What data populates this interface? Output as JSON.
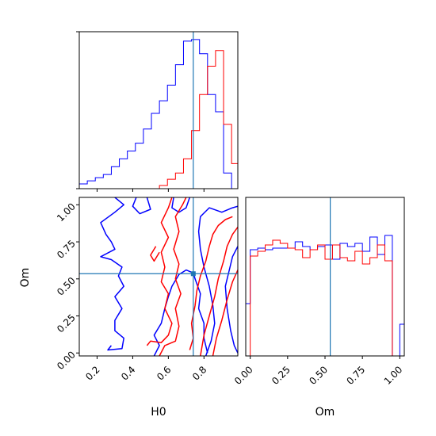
{
  "chart_data": {
    "type": "corner",
    "parameters": [
      "H0",
      "Om"
    ],
    "truths": {
      "H0": 0.74,
      "Om": 0.535
    },
    "colors": {
      "blue": "#0000ff",
      "red": "#ff0000",
      "truth": "#1f77b4"
    },
    "panels": [
      {
        "id": "hist-h0",
        "type": "histogram-step",
        "x_range": [
          0.1,
          0.99
        ],
        "bin_edges": [
          0.1,
          0.145,
          0.19,
          0.235,
          0.28,
          0.325,
          0.37,
          0.415,
          0.46,
          0.505,
          0.55,
          0.595,
          0.64,
          0.685,
          0.73,
          0.775,
          0.82,
          0.865,
          0.91,
          0.955,
          0.99
        ],
        "series": [
          {
            "color": "#0000ff",
            "counts": [
              0.03,
              0.05,
              0.07,
              0.09,
              0.14,
              0.19,
              0.24,
              0.29,
              0.38,
              0.48,
              0.56,
              0.66,
              0.79,
              0.94,
              0.95,
              0.86,
              0.6,
              0.49,
              0.1,
              0.0
            ]
          },
          {
            "color": "#ff0000",
            "counts": [
              0.0,
              0.0,
              0.0,
              0.0,
              0.0,
              0.0,
              0.0,
              0.0,
              0.0,
              0.0,
              0.02,
              0.06,
              0.1,
              0.19,
              0.37,
              0.6,
              0.78,
              0.88,
              0.41,
              0.16
            ]
          }
        ],
        "x_ticks": [
          0.2,
          0.4,
          0.6,
          0.8
        ]
      },
      {
        "id": "contour-h0-om",
        "type": "contour",
        "x_range": [
          0.1,
          0.99
        ],
        "y_range": [
          -0.02,
          1.05
        ],
        "x_ticks": [
          "0.2",
          "0.4",
          "0.6",
          "0.8"
        ],
        "y_ticks": [
          "0.00",
          "0.25",
          "0.50",
          "0.75",
          "1.00"
        ],
        "xlabel": "H0",
        "ylabel": "Om",
        "contours": [
          {
            "color": "#0000ff",
            "points": [
              [
                0.28,
                0.05
              ],
              [
                0.26,
                0.02
              ],
              [
                0.34,
                0.03
              ],
              [
                0.35,
                0.1
              ],
              [
                0.3,
                0.15
              ],
              [
                0.3,
                0.22
              ],
              [
                0.34,
                0.3
              ],
              [
                0.3,
                0.38
              ],
              [
                0.35,
                0.45
              ],
              [
                0.32,
                0.52
              ],
              [
                0.34,
                0.58
              ],
              [
                0.28,
                0.63
              ],
              [
                0.22,
                0.65
              ],
              [
                0.3,
                0.7
              ],
              [
                0.28,
                0.75
              ],
              [
                0.25,
                0.8
              ],
              [
                0.22,
                0.88
              ],
              [
                0.3,
                0.95
              ],
              [
                0.35,
                1.0
              ],
              [
                0.3,
                1.05
              ]
            ]
          },
          {
            "color": "#0000ff",
            "points": [
              [
                0.42,
                1.05
              ],
              [
                0.4,
                0.99
              ],
              [
                0.44,
                0.94
              ],
              [
                0.5,
                0.97
              ],
              [
                0.48,
                1.05
              ]
            ]
          },
          {
            "color": "#0000ff",
            "points": [
              [
                0.63,
                1.05
              ],
              [
                0.62,
                0.98
              ],
              [
                0.66,
                0.95
              ],
              [
                0.7,
                0.98
              ],
              [
                0.72,
                1.05
              ]
            ]
          },
          {
            "color": "#0000ff",
            "points": [
              [
                0.52,
                -0.02
              ],
              [
                0.55,
                0.05
              ],
              [
                0.52,
                0.12
              ],
              [
                0.56,
                0.2
              ],
              [
                0.58,
                0.3
              ],
              [
                0.6,
                0.38
              ],
              [
                0.62,
                0.45
              ],
              [
                0.66,
                0.53
              ],
              [
                0.7,
                0.56
              ],
              [
                0.74,
                0.54
              ],
              [
                0.75,
                0.5
              ],
              [
                0.78,
                0.4
              ],
              [
                0.77,
                0.3
              ],
              [
                0.8,
                0.2
              ],
              [
                0.8,
                0.1
              ],
              [
                0.82,
                0.0
              ]
            ]
          },
          {
            "color": "#0000ff",
            "points": [
              [
                0.81,
                -0.02
              ],
              [
                0.84,
                0.08
              ],
              [
                0.86,
                0.2
              ],
              [
                0.85,
                0.32
              ],
              [
                0.83,
                0.45
              ],
              [
                0.8,
                0.58
              ],
              [
                0.78,
                0.7
              ],
              [
                0.77,
                0.82
              ],
              [
                0.78,
                0.92
              ],
              [
                0.83,
                0.98
              ],
              [
                0.9,
                0.95
              ],
              [
                0.96,
                0.98
              ],
              [
                0.99,
                0.99
              ]
            ]
          },
          {
            "color": "#0000ff",
            "points": [
              [
                0.99,
                0.72
              ],
              [
                0.96,
                0.65
              ],
              [
                0.94,
                0.55
              ],
              [
                0.92,
                0.45
              ],
              [
                0.93,
                0.3
              ],
              [
                0.95,
                0.15
              ],
              [
                0.97,
                0.05
              ],
              [
                0.99,
                0.0
              ]
            ]
          },
          {
            "color": "#ff0000",
            "points": [
              [
                0.48,
                0.05
              ],
              [
                0.5,
                0.08
              ],
              [
                0.56,
                0.07
              ],
              [
                0.6,
                0.12
              ],
              [
                0.62,
                0.2
              ],
              [
                0.58,
                0.3
              ],
              [
                0.6,
                0.4
              ],
              [
                0.56,
                0.48
              ],
              [
                0.58,
                0.58
              ],
              [
                0.56,
                0.68
              ],
              [
                0.6,
                0.78
              ],
              [
                0.56,
                0.88
              ],
              [
                0.6,
                0.98
              ],
              [
                0.62,
                1.05
              ]
            ]
          },
          {
            "color": "#ff0000",
            "points": [
              [
                0.55,
                -0.02
              ],
              [
                0.58,
                0.05
              ],
              [
                0.64,
                0.08
              ],
              [
                0.66,
                0.18
              ],
              [
                0.64,
                0.3
              ],
              [
                0.67,
                0.4
              ],
              [
                0.64,
                0.5
              ],
              [
                0.66,
                0.6
              ],
              [
                0.63,
                0.7
              ],
              [
                0.66,
                0.82
              ],
              [
                0.64,
                0.92
              ],
              [
                0.68,
                1.0
              ],
              [
                0.7,
                1.05
              ]
            ]
          },
          {
            "color": "#ff0000",
            "points": [
              [
                0.53,
                0.72
              ],
              [
                0.5,
                0.66
              ],
              [
                0.52,
                0.62
              ],
              [
                0.55,
                0.68
              ]
            ]
          },
          {
            "color": "#ff0000",
            "points": [
              [
                0.72,
                0.02
              ],
              [
                0.74,
                0.1
              ],
              [
                0.73,
                0.2
              ],
              [
                0.75,
                0.32
              ],
              [
                0.76,
                0.42
              ],
              [
                0.78,
                0.52
              ],
              [
                0.81,
                0.62
              ],
              [
                0.83,
                0.72
              ],
              [
                0.85,
                0.8
              ],
              [
                0.88,
                0.86
              ],
              [
                0.92,
                0.9
              ],
              [
                0.96,
                0.92
              ]
            ]
          },
          {
            "color": "#ff0000",
            "points": [
              [
                0.78,
                -0.02
              ],
              [
                0.8,
                0.12
              ],
              [
                0.83,
                0.25
              ],
              [
                0.86,
                0.38
              ],
              [
                0.88,
                0.5
              ],
              [
                0.91,
                0.62
              ],
              [
                0.93,
                0.72
              ],
              [
                0.96,
                0.8
              ],
              [
                0.99,
                0.85
              ]
            ]
          },
          {
            "color": "#ff0000",
            "points": [
              [
                0.85,
                -0.02
              ],
              [
                0.87,
                0.1
              ],
              [
                0.9,
                0.22
              ],
              [
                0.93,
                0.36
              ],
              [
                0.96,
                0.48
              ],
              [
                0.99,
                0.56
              ]
            ]
          }
        ],
        "marker": {
          "x": 0.74,
          "y": 0.535,
          "color": "#1f77b4"
        }
      },
      {
        "id": "hist-om",
        "type": "histogram-step",
        "x_range": [
          -0.03,
          1.03
        ],
        "bin_edges": [
          -0.03,
          0.0,
          0.05,
          0.1,
          0.15,
          0.2,
          0.25,
          0.3,
          0.35,
          0.4,
          0.45,
          0.5,
          0.55,
          0.6,
          0.65,
          0.7,
          0.75,
          0.8,
          0.85,
          0.9,
          0.95,
          1.0,
          1.03
        ],
        "series": [
          {
            "color": "#0000ff",
            "counts": [
              0.33,
              0.67,
              0.68,
              0.67,
              0.68,
              0.68,
              0.68,
              0.72,
              0.69,
              0.67,
              0.69,
              0.7,
              0.61,
              0.71,
              0.69,
              0.71,
              0.66,
              0.75,
              0.64,
              0.76,
              0.0,
              0.2
            ]
          },
          {
            "color": "#ff0000",
            "counts": [
              0.0,
              0.63,
              0.66,
              0.7,
              0.73,
              0.71,
              0.68,
              0.67,
              0.62,
              0.67,
              0.7,
              0.61,
              0.7,
              0.62,
              0.6,
              0.66,
              0.58,
              0.62,
              0.7,
              0.6,
              0.0,
              0.0
            ]
          }
        ],
        "x_ticks": [
          "0.00",
          "0.25",
          "0.50",
          "0.75",
          "1.00"
        ],
        "xlabel": "Om"
      }
    ]
  }
}
